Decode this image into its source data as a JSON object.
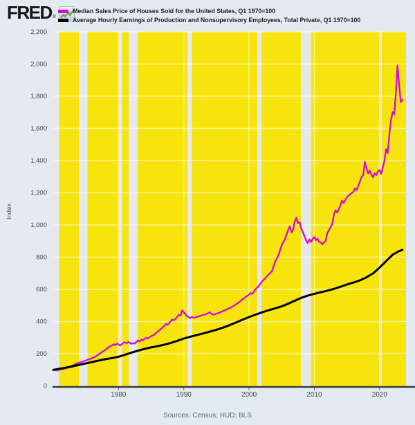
{
  "logo": {
    "text": "FRED",
    "registered": "®"
  },
  "legend": [
    {
      "label": "Median Sales Price of Houses Sold for the United States, Q1 1970=100",
      "color": "#d10fd1"
    },
    {
      "label": "Average Hourly Earnings of Production and Nonsupervisory Employees, Total Private, Q1 1970=100",
      "color": "#000000"
    }
  ],
  "y_axis_title": "Index",
  "sources_line": "Sources: Census; HUD; BLS",
  "colors": {
    "page_bg": "#e3eaf1",
    "plot_bg": "#f6e40c",
    "recession_band": "#e6e9ec",
    "gridline": "#ffffff",
    "axis_line": "#3a3a3a",
    "tick_text": "#45494d",
    "series1": "#d10fd1",
    "series2": "#000000"
  },
  "chart_data": {
    "type": "line",
    "title": "",
    "xlabel": "",
    "ylabel": "Index",
    "x_range": [
      1970,
      2024.05
    ],
    "ylim": [
      0,
      2200
    ],
    "x_ticks": [
      1980,
      1990,
      2000,
      2010,
      2020
    ],
    "y_ticks": [
      0,
      200,
      400,
      600,
      800,
      1000,
      1200,
      1400,
      1600,
      1800,
      2000,
      2200
    ],
    "grid": true,
    "legend_position": "top",
    "recession_bands": [
      [
        1969.92,
        1970.92
      ],
      [
        1973.92,
        1975.25
      ],
      [
        1980.05,
        1980.55
      ],
      [
        1981.55,
        1982.92
      ],
      [
        1990.55,
        1991.25
      ],
      [
        2001.25,
        2001.9
      ],
      [
        2007.95,
        2009.5
      ],
      [
        2020.12,
        2020.35
      ]
    ],
    "series": [
      {
        "name": "Median Sales Price of Houses Sold for the United States, Q1 1970=100",
        "color": "#d10fd1",
        "width": 2.4,
        "points": [
          [
            1970,
            100
          ],
          [
            1970.25,
            99
          ],
          [
            1970.5,
            96
          ],
          [
            1970.75,
            98
          ],
          [
            1971,
            102
          ],
          [
            1971.5,
            105
          ],
          [
            1972,
            110
          ],
          [
            1972.5,
            117
          ],
          [
            1973,
            127
          ],
          [
            1973.5,
            137
          ],
          [
            1974,
            145
          ],
          [
            1974.5,
            151
          ],
          [
            1975,
            158
          ],
          [
            1975.5,
            165
          ],
          [
            1976,
            173
          ],
          [
            1976.5,
            183
          ],
          [
            1977,
            197
          ],
          [
            1977.5,
            211
          ],
          [
            1978,
            225
          ],
          [
            1978.5,
            241
          ],
          [
            1979,
            251
          ],
          [
            1979.25,
            259
          ],
          [
            1979.5,
            253
          ],
          [
            1979.75,
            263
          ],
          [
            1980,
            257
          ],
          [
            1980.25,
            251
          ],
          [
            1980.5,
            259
          ],
          [
            1980.75,
            267
          ],
          [
            1981,
            271
          ],
          [
            1981.25,
            265
          ],
          [
            1981.5,
            273
          ],
          [
            1981.75,
            267
          ],
          [
            1982,
            261
          ],
          [
            1982.25,
            267
          ],
          [
            1982.5,
            263
          ],
          [
            1982.75,
            273
          ],
          [
            1983,
            283
          ],
          [
            1983.25,
            277
          ],
          [
            1983.5,
            287
          ],
          [
            1983.75,
            283
          ],
          [
            1984,
            293
          ],
          [
            1984.25,
            299
          ],
          [
            1984.5,
            295
          ],
          [
            1984.75,
            303
          ],
          [
            1985,
            309
          ],
          [
            1985.5,
            319
          ],
          [
            1986,
            337
          ],
          [
            1986.5,
            353
          ],
          [
            1987,
            371
          ],
          [
            1987.25,
            385
          ],
          [
            1987.5,
            379
          ],
          [
            1988,
            401
          ],
          [
            1988.25,
            413
          ],
          [
            1988.5,
            407
          ],
          [
            1989,
            429
          ],
          [
            1989.25,
            441
          ],
          [
            1989.5,
            437
          ],
          [
            1989.75,
            470
          ],
          [
            1990,
            458
          ],
          [
            1990.25,
            445
          ],
          [
            1990.5,
            433
          ],
          [
            1990.75,
            429
          ],
          [
            1991,
            421
          ],
          [
            1991.25,
            429
          ],
          [
            1991.5,
            423
          ],
          [
            1992,
            429
          ],
          [
            1992.5,
            435
          ],
          [
            1993,
            441
          ],
          [
            1993.5,
            447
          ],
          [
            1994,
            457
          ],
          [
            1994.25,
            447
          ],
          [
            1994.5,
            443
          ],
          [
            1995,
            449
          ],
          [
            1995.5,
            455
          ],
          [
            1996,
            465
          ],
          [
            1996.5,
            473
          ],
          [
            1997,
            483
          ],
          [
            1997.5,
            493
          ],
          [
            1998,
            507
          ],
          [
            1998.5,
            521
          ],
          [
            1999,
            537
          ],
          [
            1999.5,
            553
          ],
          [
            2000,
            567
          ],
          [
            2000.25,
            577
          ],
          [
            2000.5,
            571
          ],
          [
            2001,
            601
          ],
          [
            2001.5,
            621
          ],
          [
            2002,
            649
          ],
          [
            2002.5,
            669
          ],
          [
            2003,
            693
          ],
          [
            2003.5,
            711
          ],
          [
            2004,
            771
          ],
          [
            2004.5,
            811
          ],
          [
            2005,
            873
          ],
          [
            2005.5,
            911
          ],
          [
            2006,
            969
          ],
          [
            2006.25,
            991
          ],
          [
            2006.5,
            953
          ],
          [
            2006.75,
            971
          ],
          [
            2007,
            1021
          ],
          [
            2007.25,
            1045
          ],
          [
            2007.5,
            1011
          ],
          [
            2007.75,
            1017
          ],
          [
            2008,
            977
          ],
          [
            2008.25,
            955
          ],
          [
            2008.5,
            931
          ],
          [
            2008.75,
            905
          ],
          [
            2009,
            887
          ],
          [
            2009.25,
            911
          ],
          [
            2009.5,
            895
          ],
          [
            2009.75,
            913
          ],
          [
            2010,
            925
          ],
          [
            2010.25,
            905
          ],
          [
            2010.5,
            915
          ],
          [
            2010.75,
            895
          ],
          [
            2011,
            891
          ],
          [
            2011.25,
            879
          ],
          [
            2011.5,
            893
          ],
          [
            2011.75,
            901
          ],
          [
            2012,
            951
          ],
          [
            2012.25,
            967
          ],
          [
            2012.5,
            987
          ],
          [
            2012.75,
            1007
          ],
          [
            2013,
            1061
          ],
          [
            2013.25,
            1091
          ],
          [
            2013.5,
            1077
          ],
          [
            2013.75,
            1097
          ],
          [
            2014,
            1121
          ],
          [
            2014.25,
            1151
          ],
          [
            2014.5,
            1137
          ],
          [
            2015,
            1171
          ],
          [
            2015.5,
            1191
          ],
          [
            2016,
            1207
          ],
          [
            2016.25,
            1227
          ],
          [
            2016.5,
            1217
          ],
          [
            2017,
            1271
          ],
          [
            2017.25,
            1297
          ],
          [
            2017.5,
            1311
          ],
          [
            2017.75,
            1391
          ],
          [
            2018,
            1351
          ],
          [
            2018.25,
            1321
          ],
          [
            2018.5,
            1337
          ],
          [
            2018.75,
            1311
          ],
          [
            2019,
            1297
          ],
          [
            2019.25,
            1321
          ],
          [
            2019.5,
            1311
          ],
          [
            2019.75,
            1331
          ],
          [
            2020,
            1341
          ],
          [
            2020.25,
            1317
          ],
          [
            2020.5,
            1357
          ],
          [
            2020.75,
            1401
          ],
          [
            2021,
            1471
          ],
          [
            2021.25,
            1447
          ],
          [
            2021.5,
            1561
          ],
          [
            2021.75,
            1651
          ],
          [
            2022,
            1701
          ],
          [
            2022.25,
            1687
          ],
          [
            2022.5,
            1821
          ],
          [
            2022.75,
            1991
          ],
          [
            2023,
            1867
          ],
          [
            2023.25,
            1763
          ],
          [
            2023.5,
            1777
          ]
        ]
      },
      {
        "name": "Average Hourly Earnings of Production and Nonsupervisory Employees, Total Private, Q1 1970=100",
        "color": "#000000",
        "width": 3,
        "points": [
          [
            1970,
            100
          ],
          [
            1971,
            107
          ],
          [
            1972,
            114
          ],
          [
            1973,
            122
          ],
          [
            1974,
            131
          ],
          [
            1975,
            140
          ],
          [
            1976,
            149
          ],
          [
            1977,
            158
          ],
          [
            1978,
            166
          ],
          [
            1979,
            173
          ],
          [
            1980,
            181
          ],
          [
            1981,
            194
          ],
          [
            1982,
            207
          ],
          [
            1983,
            219
          ],
          [
            1984,
            230
          ],
          [
            1985,
            239
          ],
          [
            1986,
            247
          ],
          [
            1987,
            256
          ],
          [
            1988,
            267
          ],
          [
            1989,
            280
          ],
          [
            1990,
            294
          ],
          [
            1991,
            306
          ],
          [
            1992,
            316
          ],
          [
            1993,
            326
          ],
          [
            1994,
            337
          ],
          [
            1995,
            349
          ],
          [
            1996,
            362
          ],
          [
            1997,
            377
          ],
          [
            1998,
            394
          ],
          [
            1999,
            411
          ],
          [
            2000,
            428
          ],
          [
            2001,
            443
          ],
          [
            2002,
            457
          ],
          [
            2003,
            470
          ],
          [
            2004,
            482
          ],
          [
            2005,
            494
          ],
          [
            2006,
            511
          ],
          [
            2007,
            529
          ],
          [
            2008,
            547
          ],
          [
            2009,
            561
          ],
          [
            2010,
            572
          ],
          [
            2011,
            582
          ],
          [
            2012,
            592
          ],
          [
            2013,
            603
          ],
          [
            2014,
            616
          ],
          [
            2015,
            630
          ],
          [
            2016,
            642
          ],
          [
            2017,
            656
          ],
          [
            2018,
            675
          ],
          [
            2019,
            699
          ],
          [
            2020,
            735
          ],
          [
            2021,
            775
          ],
          [
            2022,
            815
          ],
          [
            2023,
            838
          ],
          [
            2023.5,
            845
          ]
        ]
      }
    ]
  }
}
